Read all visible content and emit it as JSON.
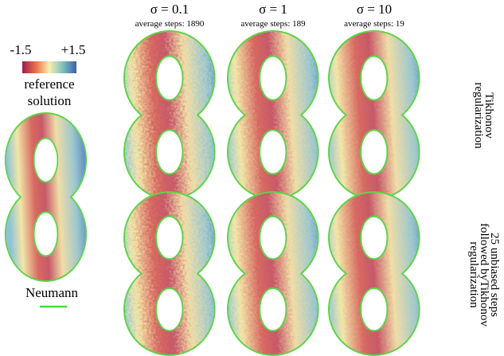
{
  "header": {
    "columns": [
      {
        "sigma": "σ = 0.1",
        "steps": "average steps: 1890"
      },
      {
        "sigma": "σ = 1",
        "steps": "average steps: 189"
      },
      {
        "sigma": "σ = 10",
        "steps": "average steps: 19"
      }
    ]
  },
  "colorbar": {
    "min": "-1.5",
    "max": "+1.5"
  },
  "reference": {
    "label_lines": [
      "reference",
      "solution"
    ],
    "boundary": "Neumann"
  },
  "rows": [
    {
      "label_lines": [
        "Tikhonov",
        "regularization"
      ]
    },
    {
      "label_lines": [
        "25 unbiased steps",
        "followed byTikhonov",
        "regularization"
      ]
    }
  ]
}
